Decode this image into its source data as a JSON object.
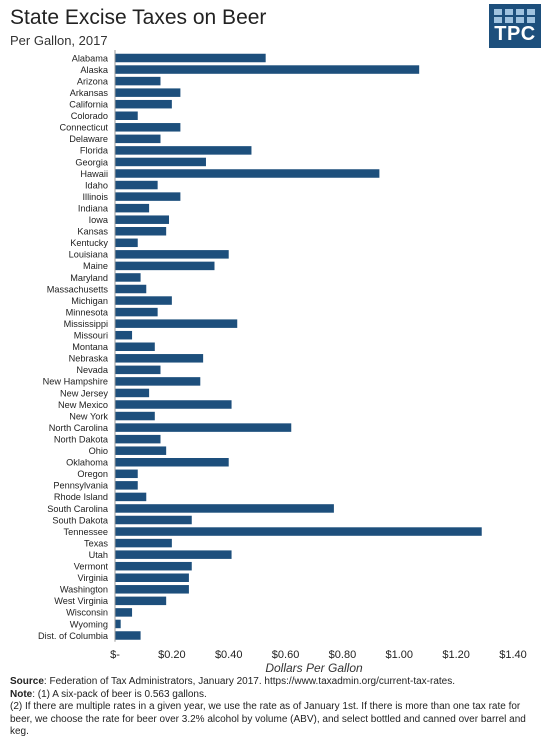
{
  "title": "State Excise Taxes on Beer",
  "subtitle": "Per Gallon, 2017",
  "logo": {
    "text": "TPC",
    "background": "#1d4f7c",
    "accent": "#9fc2df"
  },
  "bar_color": "#1d4f7c",
  "chart_data": {
    "type": "bar",
    "orientation": "horizontal",
    "categories": [
      "Alabama",
      "Alaska",
      "Arizona",
      "Arkansas",
      "California",
      "Colorado",
      "Connecticut",
      "Delaware",
      "Florida",
      "Georgia",
      "Hawaii",
      "Idaho",
      "Illinois",
      "Indiana",
      "Iowa",
      "Kansas",
      "Kentucky",
      "Louisiana",
      "Maine",
      "Maryland",
      "Massachusetts",
      "Michigan",
      "Minnesota",
      "Mississippi",
      "Missouri",
      "Montana",
      "Nebraska",
      "Nevada",
      "New Hampshire",
      "New Jersey",
      "New Mexico",
      "New York",
      "North Carolina",
      "North Dakota",
      "Ohio",
      "Oklahoma",
      "Oregon",
      "Pennsylvania",
      "Rhode Island",
      "South Carolina",
      "South Dakota",
      "Tennessee",
      "Texas",
      "Utah",
      "Vermont",
      "Virginia",
      "Washington",
      "West Virginia",
      "Wisconsin",
      "Wyoming",
      "Dist. of Columbia"
    ],
    "values": [
      0.53,
      1.07,
      0.16,
      0.23,
      0.2,
      0.08,
      0.23,
      0.16,
      0.48,
      0.32,
      0.93,
      0.15,
      0.23,
      0.12,
      0.19,
      0.18,
      0.08,
      0.4,
      0.35,
      0.09,
      0.11,
      0.2,
      0.15,
      0.43,
      0.06,
      0.14,
      0.31,
      0.16,
      0.3,
      0.12,
      0.41,
      0.14,
      0.62,
      0.16,
      0.18,
      0.4,
      0.08,
      0.08,
      0.11,
      0.77,
      0.27,
      1.29,
      0.2,
      0.41,
      0.27,
      0.26,
      0.26,
      0.18,
      0.06,
      0.02,
      0.09
    ],
    "xlabel": "Dollars Per Gallon",
    "xlim": [
      0,
      1.4
    ],
    "xticks": [
      {
        "value": 0,
        "label": "$-"
      },
      {
        "value": 0.2,
        "label": "$0.20"
      },
      {
        "value": 0.4,
        "label": "$0.40"
      },
      {
        "value": 0.6,
        "label": "$0.60"
      },
      {
        "value": 0.8,
        "label": "$0.80"
      },
      {
        "value": 1.0,
        "label": "$1.00"
      },
      {
        "value": 1.2,
        "label": "$1.20"
      },
      {
        "value": 1.4,
        "label": "$1.40"
      }
    ],
    "grid": false,
    "legend": "none"
  },
  "notes": {
    "source_label": "Source",
    "source_text": ": Federation of Tax Administrators, January 2017. https://www.taxadmin.org/current-tax-rates.",
    "note_label": "Note",
    "note1": ": (1) A six-pack of beer is 0.563 gallons.",
    "note2": "(2) If there are multiple rates in a given year, we use the rate as of January 1st. If there is more than one tax rate for beer, we choose the rate for beer over 3.2% alcohol by volume (ABV), and select bottled and canned over barrel and keg."
  }
}
